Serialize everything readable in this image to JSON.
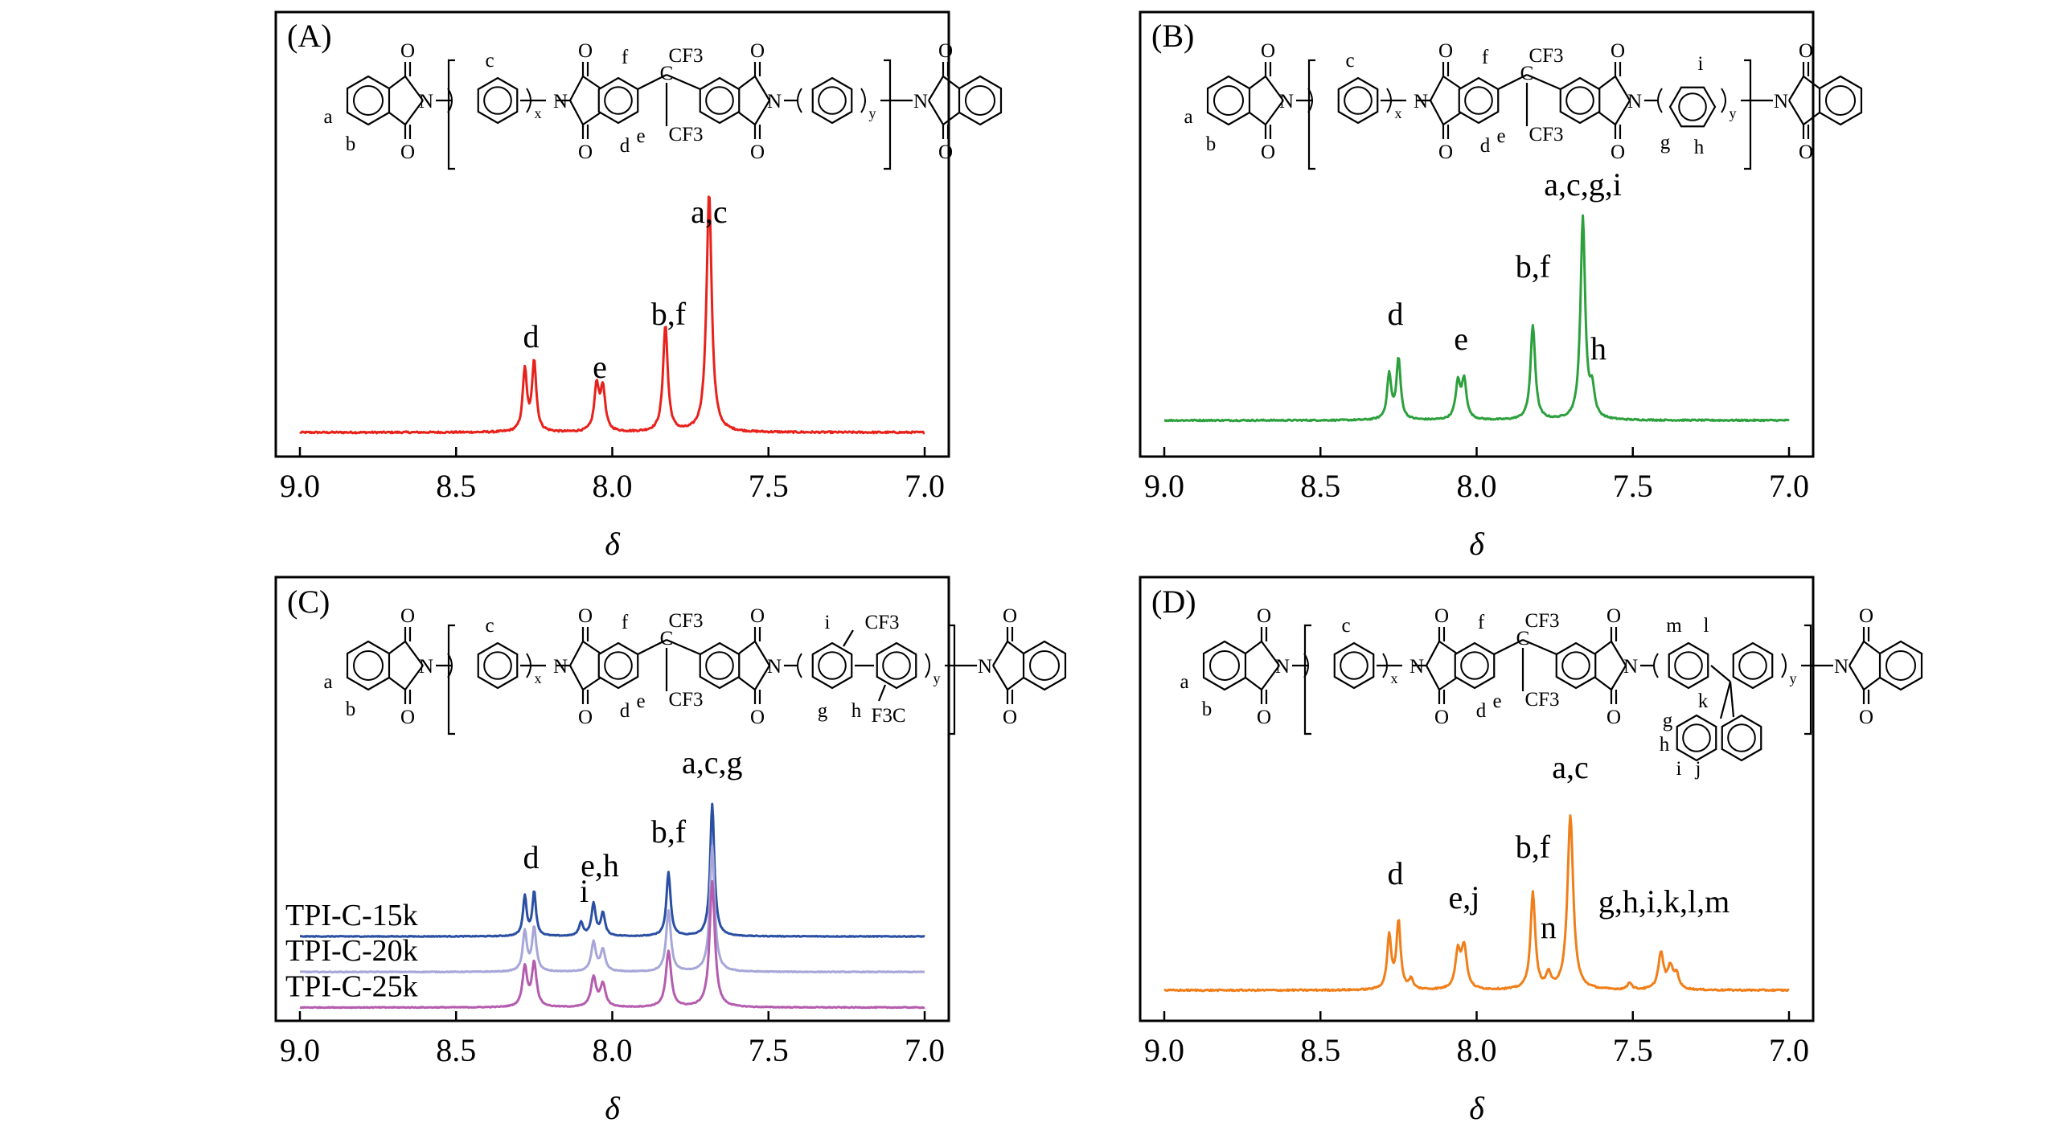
{
  "chart_data": [
    {
      "type": "line",
      "panel": "(A)",
      "xlabel": "δ",
      "xlim": [
        9.0,
        7.0
      ],
      "x_reversed": true,
      "xticks": [
        "9.0",
        "8.5",
        "8.0",
        "7.5",
        "7.0"
      ],
      "y_axis_values_shown": false,
      "structure_labels": [
        "a",
        "b",
        "c",
        "d",
        "e",
        "f",
        "x",
        "y",
        "CF3",
        "CF3",
        "C",
        "N",
        "N",
        "N",
        "N",
        "O",
        "O",
        "O",
        "O",
        "O",
        "O",
        "O",
        "O"
      ],
      "series": [
        {
          "color": "#e8211b",
          "baseline": 0.0,
          "peaks": [
            {
              "x": 8.28,
              "height": 0.22,
              "width": 0.008
            },
            {
              "x": 8.25,
              "height": 0.25,
              "width": 0.008
            },
            {
              "x": 8.05,
              "height": 0.16,
              "width": 0.009
            },
            {
              "x": 8.03,
              "height": 0.15,
              "width": 0.009
            },
            {
              "x": 7.83,
              "height": 0.38,
              "width": 0.009
            },
            {
              "x": 7.69,
              "height": 0.85,
              "width": 0.01
            }
          ]
        }
      ],
      "annotations": [
        {
          "text": "d",
          "x": 8.26
        },
        {
          "text": "e",
          "x": 8.04
        },
        {
          "text": "b,f",
          "x": 7.82
        },
        {
          "text": "a,c",
          "x": 7.69
        }
      ]
    },
    {
      "type": "line",
      "panel": "(B)",
      "xlabel": "δ",
      "xlim": [
        9.0,
        7.0
      ],
      "x_reversed": true,
      "xticks": [
        "9.0",
        "8.5",
        "8.0",
        "7.5",
        "7.0"
      ],
      "y_axis_values_shown": false,
      "structure_labels": [
        "a",
        "b",
        "c",
        "d",
        "e",
        "f",
        "g",
        "h",
        "i",
        "x",
        "y",
        "CF3",
        "CF3",
        "C",
        "N",
        "N",
        "N",
        "N",
        "O",
        "O",
        "O",
        "O",
        "O",
        "O",
        "O",
        "O"
      ],
      "series": [
        {
          "color": "#2ca03c",
          "baseline": 0.0,
          "peaks": [
            {
              "x": 8.28,
              "height": 0.2,
              "width": 0.008
            },
            {
              "x": 8.25,
              "height": 0.27,
              "width": 0.008
            },
            {
              "x": 8.06,
              "height": 0.16,
              "width": 0.009
            },
            {
              "x": 8.04,
              "height": 0.17,
              "width": 0.009
            },
            {
              "x": 7.82,
              "height": 0.42,
              "width": 0.009
            },
            {
              "x": 7.66,
              "height": 0.9,
              "width": 0.009
            },
            {
              "x": 7.63,
              "height": 0.12,
              "width": 0.009
            }
          ]
        }
      ],
      "annotations": [
        {
          "text": "d",
          "x": 8.26
        },
        {
          "text": "e",
          "x": 8.05
        },
        {
          "text": "b,f",
          "x": 7.82
        },
        {
          "text": "a,c,g,i",
          "x": 7.66
        },
        {
          "text": "h",
          "x": 7.61
        }
      ]
    },
    {
      "type": "line",
      "panel": "(C)",
      "xlabel": "δ",
      "xlim": [
        9.0,
        7.0
      ],
      "x_reversed": true,
      "xticks": [
        "9.0",
        "8.5",
        "8.0",
        "7.5",
        "7.0"
      ],
      "y_axis_values_shown": false,
      "structure_labels": [
        "a",
        "b",
        "c",
        "d",
        "e",
        "f",
        "g",
        "h",
        "i",
        "x",
        "y",
        "CF3",
        "CF3",
        "CF3",
        "F3C",
        "C",
        "N",
        "N",
        "N",
        "N",
        "O",
        "O",
        "O",
        "O",
        "O",
        "O",
        "O",
        "O"
      ],
      "series": [
        {
          "name": "TPI-C-15k",
          "color": "#2a4fa3",
          "baseline": 0.0,
          "peaks": [
            {
              "x": 8.28,
              "height": 0.3,
              "width": 0.007
            },
            {
              "x": 8.25,
              "height": 0.33,
              "width": 0.007
            },
            {
              "x": 8.1,
              "height": 0.1,
              "width": 0.008
            },
            {
              "x": 8.06,
              "height": 0.24,
              "width": 0.008
            },
            {
              "x": 8.03,
              "height": 0.17,
              "width": 0.008
            },
            {
              "x": 7.82,
              "height": 0.48,
              "width": 0.008
            },
            {
              "x": 7.68,
              "height": 1.0,
              "width": 0.008
            }
          ]
        },
        {
          "name": "TPI-C-20k",
          "color": "#a6a6d8",
          "baseline": -0.26,
          "peaks": [
            {
              "x": 8.28,
              "height": 0.3,
              "width": 0.008
            },
            {
              "x": 8.25,
              "height": 0.33,
              "width": 0.008
            },
            {
              "x": 8.06,
              "height": 0.22,
              "width": 0.009
            },
            {
              "x": 8.03,
              "height": 0.16,
              "width": 0.009
            },
            {
              "x": 7.82,
              "height": 0.46,
              "width": 0.009
            },
            {
              "x": 7.68,
              "height": 0.95,
              "width": 0.009
            }
          ]
        },
        {
          "name": "TPI-C-25k",
          "color": "#b45cae",
          "baseline": -0.52,
          "peaks": [
            {
              "x": 8.28,
              "height": 0.3,
              "width": 0.009
            },
            {
              "x": 8.25,
              "height": 0.33,
              "width": 0.009
            },
            {
              "x": 8.06,
              "height": 0.22,
              "width": 0.01
            },
            {
              "x": 8.03,
              "height": 0.17,
              "width": 0.01
            },
            {
              "x": 7.82,
              "height": 0.42,
              "width": 0.01
            },
            {
              "x": 7.68,
              "height": 0.95,
              "width": 0.01
            }
          ]
        }
      ],
      "annotations": [
        {
          "text": "d",
          "x": 8.26
        },
        {
          "text": "i",
          "x": 8.09
        },
        {
          "text": "e,h",
          "x": 8.04
        },
        {
          "text": "b,f",
          "x": 7.82
        },
        {
          "text": "a,c,g",
          "x": 7.68
        }
      ]
    },
    {
      "type": "line",
      "panel": "(D)",
      "xlabel": "δ",
      "xlim": [
        9.0,
        7.0
      ],
      "x_reversed": true,
      "xticks": [
        "9.0",
        "8.5",
        "8.0",
        "7.5",
        "7.0"
      ],
      "y_axis_values_shown": false,
      "structure_labels": [
        "a",
        "b",
        "c",
        "d",
        "e",
        "f",
        "g",
        "h",
        "i",
        "j",
        "k",
        "l",
        "m",
        "x",
        "y",
        "CF3",
        "CF3",
        "C",
        "N",
        "N",
        "N",
        "N",
        "O",
        "O",
        "O",
        "O",
        "O",
        "O",
        "O",
        "O"
      ],
      "series": [
        {
          "color": "#f07f1a",
          "baseline": 0.0,
          "peaks": [
            {
              "x": 8.28,
              "height": 0.22,
              "width": 0.008
            },
            {
              "x": 8.25,
              "height": 0.28,
              "width": 0.008
            },
            {
              "x": 8.21,
              "height": 0.04,
              "width": 0.008
            },
            {
              "x": 8.06,
              "height": 0.15,
              "width": 0.01
            },
            {
              "x": 8.04,
              "height": 0.17,
              "width": 0.01
            },
            {
              "x": 7.82,
              "height": 0.4,
              "width": 0.009
            },
            {
              "x": 7.77,
              "height": 0.06,
              "width": 0.008
            },
            {
              "x": 7.7,
              "height": 0.72,
              "width": 0.011
            },
            {
              "x": 7.51,
              "height": 0.03,
              "width": 0.008
            },
            {
              "x": 7.41,
              "height": 0.15,
              "width": 0.01
            },
            {
              "x": 7.38,
              "height": 0.09,
              "width": 0.01
            },
            {
              "x": 7.36,
              "height": 0.06,
              "width": 0.009
            }
          ]
        }
      ],
      "annotations": [
        {
          "text": "d",
          "x": 8.26
        },
        {
          "text": "e,j",
          "x": 8.04
        },
        {
          "text": "b,f",
          "x": 7.82
        },
        {
          "text": "n",
          "x": 7.77
        },
        {
          "text": "a,c",
          "x": 7.7
        },
        {
          "text": "g,h,i,k,l,m",
          "x": 7.4
        }
      ]
    }
  ]
}
